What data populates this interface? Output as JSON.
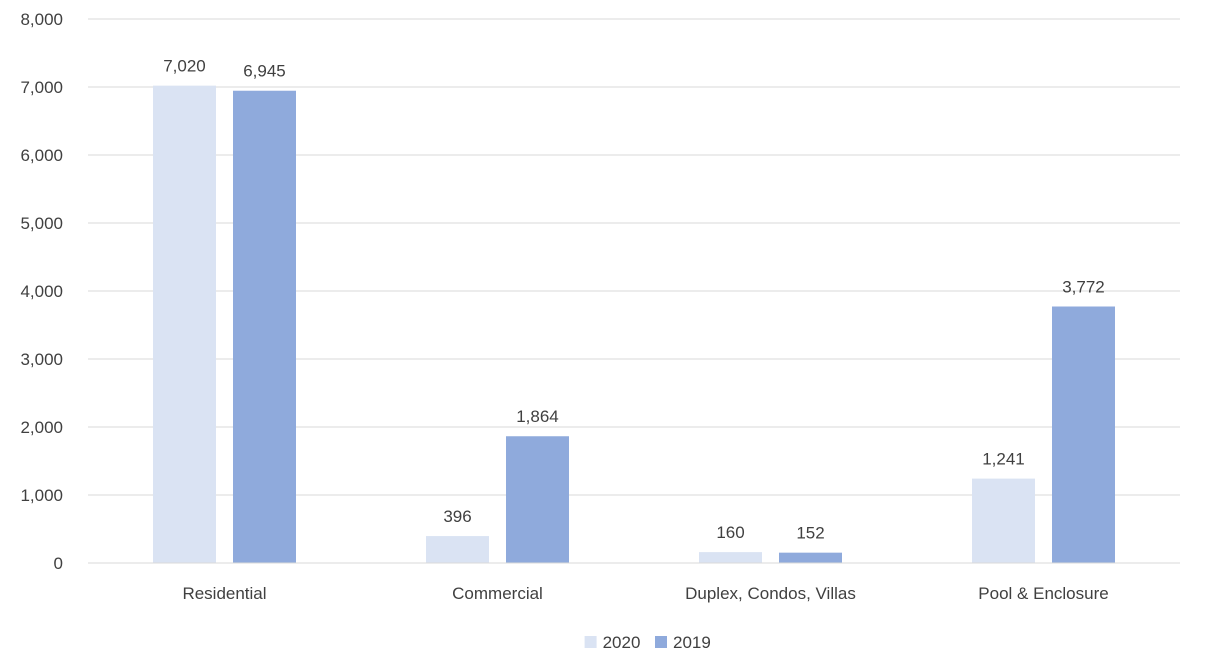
{
  "chart_data": {
    "type": "bar",
    "categories": [
      "Residential",
      "Commercial",
      "Duplex, Condos, Villas",
      "Pool & Enclosure"
    ],
    "series": [
      {
        "name": "2020",
        "values": [
          7020,
          396,
          160,
          1241
        ],
        "color": "#dae3f3"
      },
      {
        "name": "2019",
        "values": [
          6945,
          1864,
          152,
          3772
        ],
        "color": "#8faadc"
      }
    ],
    "data_labels": [
      [
        "7,020",
        "396",
        "160",
        "1,241"
      ],
      [
        "6,945",
        "1,864",
        "152",
        "3,772"
      ]
    ],
    "y_ticks": [
      0,
      1000,
      2000,
      3000,
      4000,
      5000,
      6000,
      7000,
      8000
    ],
    "y_tick_labels": [
      "0",
      "1,000",
      "2,000",
      "3,000",
      "4,000",
      "5,000",
      "6,000",
      "7,000",
      "8,000"
    ],
    "ylim": [
      0,
      8000
    ],
    "grid": true,
    "gridline_color": "#d9d9d9",
    "legend_position": "bottom",
    "title": "",
    "xlabel": "",
    "ylabel": ""
  }
}
